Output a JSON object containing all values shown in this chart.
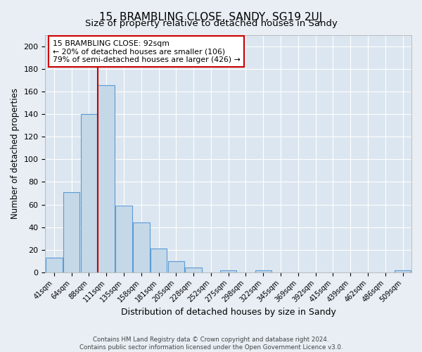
{
  "title": "15, BRAMBLING CLOSE, SANDY, SG19 2UJ",
  "subtitle": "Size of property relative to detached houses in Sandy",
  "xlabel": "Distribution of detached houses by size in Sandy",
  "ylabel": "Number of detached properties",
  "footnote1": "Contains HM Land Registry data © Crown copyright and database right 2024.",
  "footnote2": "Contains public sector information licensed under the Open Government Licence v3.0.",
  "bar_labels": [
    "41sqm",
    "64sqm",
    "88sqm",
    "111sqm",
    "135sqm",
    "158sqm",
    "181sqm",
    "205sqm",
    "228sqm",
    "252sqm",
    "275sqm",
    "298sqm",
    "322sqm",
    "345sqm",
    "369sqm",
    "392sqm",
    "415sqm",
    "439sqm",
    "462sqm",
    "486sqm",
    "509sqm"
  ],
  "bar_heights": [
    13,
    71,
    140,
    166,
    59,
    44,
    21,
    10,
    4,
    0,
    2,
    0,
    2,
    0,
    0,
    0,
    0,
    0,
    0,
    0,
    2
  ],
  "bar_color": "#c5d8e8",
  "bar_edge_color": "#5b9bd5",
  "vline_x_idx": 2.5,
  "vline_color": "#cc0000",
  "annotation_title": "15 BRAMBLING CLOSE: 92sqm",
  "annotation_line2": "← 20% of detached houses are smaller (106)",
  "annotation_line3": "79% of semi-detached houses are larger (426) →",
  "annotation_box_color": "#cc0000",
  "ylim": [
    0,
    210
  ],
  "yticks": [
    0,
    20,
    40,
    60,
    80,
    100,
    120,
    140,
    160,
    180,
    200
  ],
  "bg_color": "#e8eef4",
  "plot_bg_color": "#dce6f0",
  "grid_color": "#ffffff",
  "title_fontsize": 11,
  "subtitle_fontsize": 9.5
}
